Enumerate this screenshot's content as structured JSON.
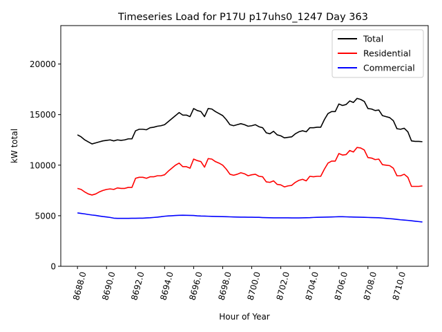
{
  "chart_data": {
    "type": "line",
    "title": "Timeseries Load for P17U p17uhs0_1247  Day 363",
    "xlabel": "Hour of Year",
    "ylabel": "kW total",
    "xlim": [
      8686.85,
      8712.15
    ],
    "ylim": [
      0,
      23800
    ],
    "xticks": [
      8688,
      8690,
      8692,
      8694,
      8696,
      8698,
      8700,
      8702,
      8704,
      8706,
      8708,
      8710
    ],
    "xtick_labels": [
      "8688.0",
      "8690.0",
      "8692.0",
      "8694.0",
      "8696.0",
      "8698.0",
      "8700.0",
      "8702.0",
      "8704.0",
      "8706.0",
      "8708.0",
      "8710.0"
    ],
    "yticks": [
      0,
      5000,
      10000,
      15000,
      20000
    ],
    "ytick_labels": [
      "0",
      "5000",
      "10000",
      "15000",
      "20000"
    ],
    "legend_position": "top-right",
    "x": [
      8688.0,
      8688.25,
      8688.5,
      8688.75,
      8689.0,
      8689.25,
      8689.5,
      8689.75,
      8690.0,
      8690.25,
      8690.5,
      8690.75,
      8691.0,
      8691.25,
      8691.5,
      8691.75,
      8692.0,
      8692.25,
      8692.5,
      8692.75,
      8693.0,
      8693.25,
      8693.5,
      8693.75,
      8694.0,
      8694.25,
      8694.5,
      8694.75,
      8695.0,
      8695.25,
      8695.5,
      8695.75,
      8696.0,
      8696.25,
      8696.5,
      8696.75,
      8697.0,
      8697.25,
      8697.5,
      8697.75,
      8698.0,
      8698.25,
      8698.5,
      8698.75,
      8699.0,
      8699.25,
      8699.5,
      8699.75,
      8700.0,
      8700.25,
      8700.5,
      8700.75,
      8701.0,
      8701.25,
      8701.5,
      8701.75,
      8702.0,
      8702.25,
      8702.5,
      8702.75,
      8703.0,
      8703.25,
      8703.5,
      8703.75,
      8704.0,
      8704.25,
      8704.5,
      8704.75,
      8705.0,
      8705.25,
      8705.5,
      8705.75,
      8706.0,
      8706.25,
      8706.5,
      8706.75,
      8707.0,
      8707.25,
      8707.5,
      8707.75,
      8708.0,
      8708.25,
      8708.5,
      8708.75,
      8709.0,
      8709.25,
      8709.5,
      8709.75,
      8710.0,
      8710.25,
      8710.5,
      8710.75,
      8711.0,
      8711.25,
      8711.5,
      8711.75
    ],
    "series": [
      {
        "name": "Total",
        "color": "#000000",
        "values": [
          13000,
          12800,
          12500,
          12300,
          12100,
          12200,
          12300,
          12400,
          12450,
          12500,
          12400,
          12500,
          12450,
          12500,
          12600,
          12600,
          13400,
          13550,
          13550,
          13500,
          13700,
          13750,
          13850,
          13900,
          14000,
          14300,
          14600,
          14900,
          15200,
          14950,
          14950,
          14800,
          15600,
          15400,
          15300,
          14800,
          15600,
          15550,
          15300,
          15100,
          14900,
          14500,
          14000,
          13900,
          14000,
          14100,
          14000,
          13850,
          13900,
          14000,
          13800,
          13700,
          13200,
          13100,
          13350,
          13000,
          12900,
          12700,
          12750,
          12800,
          13100,
          13300,
          13400,
          13300,
          13700,
          13700,
          13750,
          13750,
          14500,
          15100,
          15300,
          15300,
          16050,
          15900,
          16000,
          16350,
          16200,
          16600,
          16500,
          16300,
          15600,
          15550,
          15400,
          15450,
          14900,
          14800,
          14700,
          14400,
          13600,
          13550,
          13650,
          13300,
          12400,
          12350,
          12350,
          12320
        ]
      },
      {
        "name": "Residential",
        "color": "#ff0000",
        "values": [
          7700,
          7600,
          7350,
          7150,
          7050,
          7150,
          7350,
          7500,
          7600,
          7650,
          7600,
          7750,
          7700,
          7700,
          7800,
          7800,
          8700,
          8800,
          8800,
          8700,
          8850,
          8850,
          8950,
          8950,
          9050,
          9400,
          9700,
          10000,
          10200,
          9850,
          9850,
          9700,
          10600,
          10450,
          10350,
          9800,
          10650,
          10600,
          10350,
          10200,
          10000,
          9600,
          9100,
          9000,
          9100,
          9250,
          9150,
          8950,
          9050,
          9100,
          8900,
          8850,
          8350,
          8300,
          8450,
          8100,
          8050,
          7850,
          7950,
          8000,
          8300,
          8500,
          8600,
          8450,
          8900,
          8850,
          8900,
          8900,
          9600,
          10200,
          10400,
          10400,
          11150,
          11000,
          11050,
          11450,
          11300,
          11750,
          11700,
          11500,
          10750,
          10700,
          10550,
          10600,
          10050,
          10000,
          9950,
          9700,
          8950,
          8950,
          9100,
          8800,
          7900,
          7900,
          7900,
          7950
        ]
      },
      {
        "name": "Commercial",
        "color": "#0000ff",
        "values": [
          5280,
          5230,
          5180,
          5120,
          5070,
          5030,
          4970,
          4920,
          4880,
          4830,
          4760,
          4740,
          4740,
          4740,
          4740,
          4750,
          4750,
          4760,
          4760,
          4780,
          4800,
          4830,
          4860,
          4900,
          4950,
          4980,
          5000,
          5020,
          5040,
          5050,
          5040,
          5030,
          5020,
          4990,
          4970,
          4960,
          4950,
          4940,
          4930,
          4920,
          4910,
          4900,
          4890,
          4880,
          4870,
          4860,
          4860,
          4850,
          4850,
          4840,
          4840,
          4820,
          4810,
          4800,
          4790,
          4790,
          4790,
          4790,
          4790,
          4780,
          4780,
          4780,
          4790,
          4800,
          4810,
          4830,
          4840,
          4850,
          4860,
          4870,
          4880,
          4890,
          4900,
          4900,
          4890,
          4880,
          4870,
          4860,
          4850,
          4840,
          4830,
          4820,
          4810,
          4800,
          4770,
          4740,
          4710,
          4680,
          4640,
          4600,
          4570,
          4540,
          4500,
          4460,
          4420,
          4380
        ]
      }
    ]
  }
}
